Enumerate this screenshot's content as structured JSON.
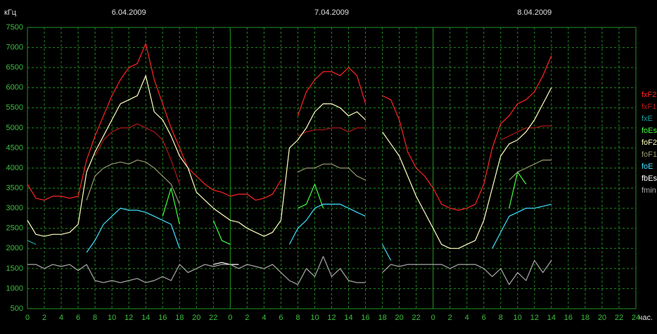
{
  "chart_data": {
    "type": "line",
    "y_unit": "кГц",
    "x_unit": "час.",
    "date_labels": [
      {
        "x": 12,
        "text": "6.04.2009"
      },
      {
        "x": 36,
        "text": "7.04.2009"
      },
      {
        "x": 60,
        "text": "8.04.2009"
      }
    ],
    "x": [
      0,
      1,
      2,
      3,
      4,
      5,
      6,
      7,
      8,
      9,
      10,
      11,
      12,
      13,
      14,
      15,
      16,
      17,
      18,
      19,
      20,
      21,
      22,
      23,
      24,
      25,
      26,
      27,
      28,
      29,
      30,
      31,
      32,
      33,
      34,
      35,
      36,
      37,
      38,
      39,
      40,
      41,
      42,
      43,
      44,
      45,
      46,
      47,
      48,
      49,
      50,
      51,
      52,
      53,
      54,
      55,
      56,
      57,
      58,
      59,
      60,
      61,
      62,
      63,
      64,
      65,
      66,
      67,
      68,
      69,
      70,
      71,
      72
    ],
    "xlim": [
      0,
      72
    ],
    "xticks": [
      0,
      2,
      4,
      6,
      8,
      10,
      12,
      14,
      16,
      18,
      20,
      22,
      {
        "value": 24,
        "label": "0"
      },
      {
        "value": 26,
        "label": "2"
      },
      {
        "value": 28,
        "label": "4"
      },
      {
        "value": 30,
        "label": "6"
      },
      {
        "value": 32,
        "label": "8"
      },
      {
        "value": 34,
        "label": "10"
      },
      {
        "value": 36,
        "label": "12"
      },
      {
        "value": 38,
        "label": "14"
      },
      {
        "value": 40,
        "label": "16"
      },
      {
        "value": 42,
        "label": "18"
      },
      {
        "value": 44,
        "label": "20"
      },
      {
        "value": 46,
        "label": "22"
      },
      {
        "value": 48,
        "label": "0"
      },
      {
        "value": 50,
        "label": "2"
      },
      {
        "value": 52,
        "label": "4"
      },
      {
        "value": 54,
        "label": "6"
      },
      {
        "value": 56,
        "label": "8"
      },
      {
        "value": 58,
        "label": "10"
      },
      {
        "value": 60,
        "label": "12"
      },
      {
        "value": 62,
        "label": "14"
      },
      {
        "value": 64,
        "label": "16"
      },
      {
        "value": 66,
        "label": "18"
      },
      {
        "value": 68,
        "label": "20"
      },
      {
        "value": 70,
        "label": "22"
      },
      {
        "value": 72,
        "label": "24"
      }
    ],
    "ylim": [
      500,
      7500
    ],
    "yticks": [
      500,
      1000,
      1500,
      2000,
      2500,
      3000,
      3500,
      4000,
      4500,
      5000,
      5500,
      6000,
      6500,
      7000,
      7500
    ],
    "grid": true,
    "legend": "right",
    "series": [
      {
        "name": "fxF2",
        "color": "#ff2424",
        "values": [
          3600,
          3250,
          3200,
          3300,
          3300,
          3250,
          3300,
          4200,
          4800,
          5300,
          5800,
          6200,
          6500,
          6600,
          7100,
          6200,
          5600,
          5000,
          4500,
          4000,
          3800,
          3600,
          3450,
          3400,
          3300,
          3350,
          3350,
          3200,
          3250,
          3350,
          3700,
          null,
          5300,
          5900,
          6200,
          6400,
          6400,
          6300,
          6500,
          6300,
          5600,
          null,
          5800,
          5700,
          5200,
          4400,
          4000,
          3800,
          3500,
          3100,
          3000,
          2950,
          3000,
          3100,
          3600,
          4500,
          5100,
          5300,
          5600,
          5700,
          5900,
          6300,
          6800,
          null,
          null,
          null,
          null,
          null,
          null,
          null,
          null,
          null,
          null
        ]
      },
      {
        "name": "fxF1",
        "color": "#b01818",
        "values": [
          null,
          null,
          null,
          null,
          null,
          null,
          null,
          null,
          4300,
          4700,
          4900,
          5000,
          5000,
          5100,
          5000,
          4900,
          4700,
          4200,
          3600,
          null,
          null,
          null,
          null,
          null,
          null,
          null,
          null,
          null,
          null,
          null,
          null,
          null,
          4800,
          4900,
          4950,
          4950,
          5000,
          5000,
          4900,
          5000,
          5000,
          null,
          null,
          null,
          null,
          null,
          null,
          null,
          null,
          null,
          null,
          null,
          null,
          null,
          null,
          null,
          4700,
          4800,
          4900,
          5000,
          5000,
          5050,
          5050,
          null,
          null,
          null,
          null,
          null,
          null,
          null,
          null,
          null,
          null
        ]
      },
      {
        "name": "fxE",
        "color": "#1a9a9a",
        "values": [
          2200,
          2100,
          null,
          null,
          null,
          null,
          null,
          null,
          null,
          null,
          null,
          null,
          null,
          null,
          null,
          null,
          null,
          null,
          null,
          null,
          null,
          null,
          null,
          null,
          null,
          null,
          null,
          null,
          null,
          null,
          null,
          null,
          null,
          null,
          null,
          null,
          null,
          null,
          null,
          null,
          null,
          null,
          null,
          null,
          null,
          null,
          null,
          null,
          null,
          null,
          null,
          null,
          null,
          null,
          null,
          null,
          null,
          null,
          null,
          null,
          null,
          null,
          null,
          null,
          null,
          null,
          null,
          null,
          null,
          null,
          null,
          null,
          null
        ]
      },
      {
        "name": "foEs",
        "color": "#40ff40",
        "values": [
          null,
          null,
          null,
          null,
          null,
          null,
          null,
          null,
          null,
          null,
          null,
          null,
          null,
          null,
          null,
          null,
          2800,
          3500,
          2600,
          null,
          null,
          null,
          2700,
          2200,
          2100,
          null,
          null,
          null,
          null,
          null,
          null,
          null,
          3000,
          3100,
          3600,
          3000,
          null,
          null,
          null,
          null,
          null,
          null,
          null,
          null,
          null,
          null,
          null,
          null,
          null,
          null,
          null,
          null,
          null,
          null,
          null,
          null,
          null,
          3000,
          3900,
          3600,
          null,
          null,
          null,
          null,
          null,
          null,
          null,
          null,
          null,
          null,
          null,
          null,
          null
        ]
      },
      {
        "name": "foF2",
        "color": "#ffffc0",
        "values": [
          2700,
          2350,
          2300,
          2350,
          2350,
          2400,
          2600,
          3900,
          4400,
          4800,
          5200,
          5600,
          5700,
          5800,
          6300,
          5400,
          5200,
          4800,
          4300,
          4000,
          3400,
          3200,
          3000,
          2850,
          2700,
          2650,
          2500,
          2400,
          2300,
          2400,
          2700,
          4500,
          4700,
          5000,
          5400,
          5600,
          5600,
          5500,
          5300,
          5400,
          5200,
          null,
          4900,
          4600,
          4300,
          3800,
          3300,
          2900,
          2500,
          2100,
          2000,
          2000,
          2100,
          2200,
          2700,
          3500,
          4300,
          4600,
          4700,
          4900,
          5200,
          5600,
          6000,
          null,
          null,
          null,
          null,
          null,
          null,
          null,
          null,
          null,
          null
        ]
      },
      {
        "name": "foF1",
        "color": "#9a9a72",
        "values": [
          null,
          null,
          null,
          null,
          null,
          null,
          null,
          3200,
          3800,
          4000,
          4100,
          4150,
          4100,
          4200,
          4150,
          4000,
          3800,
          3600,
          3100,
          null,
          null,
          null,
          null,
          null,
          null,
          null,
          null,
          null,
          null,
          null,
          null,
          null,
          3900,
          4000,
          4000,
          4100,
          4100,
          4000,
          4000,
          3800,
          3700,
          null,
          null,
          null,
          null,
          null,
          null,
          null,
          null,
          null,
          null,
          null,
          null,
          null,
          null,
          null,
          null,
          3700,
          3900,
          4000,
          4100,
          4200,
          4200,
          null,
          null,
          null,
          null,
          null,
          null,
          null,
          null,
          null,
          null
        ]
      },
      {
        "name": "foE",
        "color": "#40e0ff",
        "values": [
          null,
          null,
          null,
          null,
          null,
          null,
          null,
          1900,
          2200,
          2600,
          2800,
          3000,
          2950,
          2950,
          2900,
          2800,
          2700,
          2600,
          2000,
          null,
          null,
          null,
          null,
          null,
          null,
          null,
          null,
          null,
          null,
          null,
          null,
          2100,
          2500,
          2700,
          3000,
          3100,
          3100,
          3100,
          3000,
          2900,
          2800,
          null,
          2100,
          1700,
          null,
          null,
          null,
          null,
          null,
          null,
          null,
          null,
          null,
          null,
          null,
          2000,
          2400,
          2800,
          2900,
          3000,
          3000,
          3050,
          3100,
          null,
          null,
          null,
          null,
          null,
          null,
          null,
          null,
          null,
          null
        ]
      },
      {
        "name": "fbEs",
        "color": "#ffffff",
        "values": [
          null,
          null,
          null,
          null,
          null,
          null,
          null,
          null,
          null,
          null,
          null,
          null,
          null,
          null,
          null,
          null,
          null,
          null,
          null,
          null,
          null,
          null,
          1600,
          1650,
          1600,
          1600,
          null,
          null,
          null,
          null,
          null,
          null,
          null,
          null,
          null,
          null,
          null,
          null,
          null,
          null,
          null,
          null,
          null,
          null,
          null,
          null,
          null,
          null,
          null,
          null,
          null,
          null,
          null,
          null,
          null,
          null,
          null,
          null,
          null,
          null,
          null,
          null,
          null,
          null,
          null,
          null,
          null,
          null,
          null,
          null,
          null,
          null,
          null
        ]
      },
      {
        "name": "fmin",
        "color": "#a8a8a8",
        "values": [
          1600,
          1600,
          1500,
          1600,
          1550,
          1600,
          1450,
          1600,
          1200,
          1150,
          1200,
          1150,
          1200,
          1250,
          1150,
          1200,
          1300,
          1200,
          1600,
          1400,
          1500,
          1600,
          1550,
          1600,
          1600,
          1500,
          1600,
          1550,
          1500,
          1600,
          1400,
          1200,
          1100,
          1500,
          1300,
          1800,
          1300,
          1500,
          1200,
          1150,
          1150,
          null,
          1400,
          1600,
          1550,
          1600,
          1600,
          1600,
          1600,
          1600,
          1500,
          1600,
          1600,
          1600,
          1500,
          1300,
          1500,
          1100,
          1400,
          1200,
          1700,
          1400,
          1700,
          null,
          null,
          null,
          null,
          null,
          null,
          null,
          null,
          null,
          null
        ]
      }
    ]
  }
}
